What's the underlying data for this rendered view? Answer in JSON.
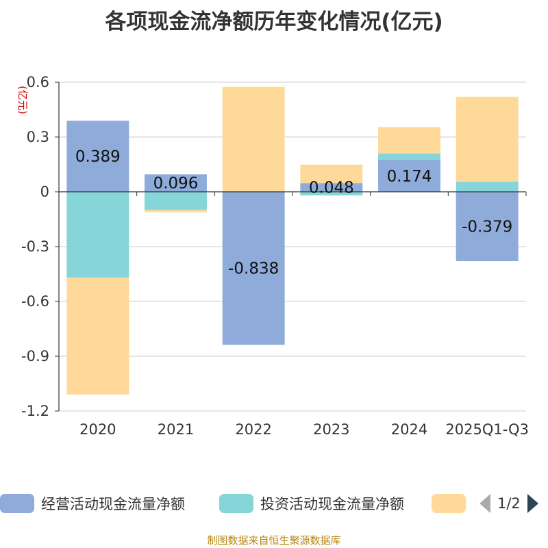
{
  "chart_data": {
    "type": "bar",
    "stacked": true,
    "title": "各项现金流净额历年变化情况(亿元)",
    "ylabel": "(亿元)",
    "xlabel": "",
    "categories": [
      "2020",
      "2021",
      "2022",
      "2023",
      "2024",
      "2025Q1-Q3"
    ],
    "ylim": [
      -1.2,
      0.6
    ],
    "yticks": [
      0.6,
      0.3,
      0,
      -0.3,
      -0.6,
      -0.9,
      -1.2
    ],
    "ytick_labels": [
      "0.6",
      "0.3",
      "0",
      "-0.3",
      "-0.6",
      "-0.9",
      "-1.2"
    ],
    "grid": true,
    "series": [
      {
        "name": "经营活动现金流量净额",
        "color": "#8eabd9",
        "values": [
          0.389,
          0.096,
          -0.838,
          0.048,
          0.174,
          -0.379
        ],
        "labels": [
          "0.389",
          "0.096",
          "-0.838",
          "0.048",
          "0.174",
          "-0.379"
        ]
      },
      {
        "name": "投资活动现金流量净额",
        "color": "#86d5d8",
        "values": [
          -0.47,
          -0.1,
          0.0,
          -0.02,
          0.035,
          0.055
        ]
      },
      {
        "name": "",
        "color": "#fed999",
        "values": [
          -0.64,
          -0.012,
          0.575,
          0.1,
          0.145,
          0.465
        ]
      }
    ],
    "legend": {
      "position": "bottom",
      "page_text": "1/2"
    }
  },
  "source_note": "制图数据来自恒生聚源数据库"
}
